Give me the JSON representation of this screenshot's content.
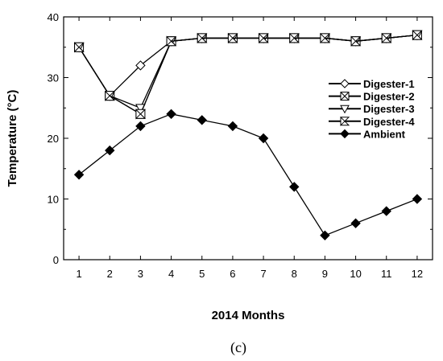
{
  "chart_data": {
    "type": "line",
    "xlabel": "2014 Months",
    "ylabel": "Temperature (°C)",
    "caption": "(c)",
    "x": [
      1,
      2,
      3,
      4,
      5,
      6,
      7,
      8,
      9,
      10,
      11,
      12
    ],
    "xlim": [
      0.5,
      12.5
    ],
    "ylim": [
      0,
      40
    ],
    "xticks": [
      "1",
      "2",
      "3",
      "4",
      "5",
      "6",
      "7",
      "8",
      "9",
      "10",
      "11",
      "12"
    ],
    "yticks": [
      "0",
      "10",
      "20",
      "30",
      "40"
    ],
    "grid": false,
    "legend_position": "right",
    "series": [
      {
        "name": "Digester-1",
        "marker": "diamond-open",
        "x": [
          1,
          2,
          3,
          4,
          5,
          6,
          7,
          8,
          9,
          10,
          11,
          12
        ],
        "values": [
          35,
          27,
          32,
          36,
          36.5,
          36.5,
          36.5,
          36.5,
          36.5,
          36,
          36.5,
          37
        ]
      },
      {
        "name": "Digester-2",
        "marker": "square-x",
        "x": [
          1,
          2,
          3,
          4,
          5,
          6,
          7,
          8,
          9,
          10,
          11,
          12
        ],
        "values": [
          35,
          27,
          24,
          36,
          36.5,
          36.5,
          36.5,
          36.5,
          36.5,
          36,
          36.5,
          37
        ]
      },
      {
        "name": "Digester-3",
        "marker": "triangle-down-open",
        "x": [
          1,
          2,
          3,
          4,
          5,
          6,
          7,
          8,
          9,
          10,
          11,
          12
        ],
        "values": [
          35,
          27,
          25,
          36,
          36.5,
          36.5,
          36.5,
          36.5,
          36.5,
          36,
          36.5,
          37
        ]
      },
      {
        "name": "Digester-4",
        "marker": "bowtie",
        "x": [
          1,
          2,
          3,
          4,
          5,
          6,
          7,
          8,
          9,
          10,
          11,
          12
        ],
        "values": [
          35,
          27,
          24,
          36,
          36.5,
          36.5,
          36.5,
          36.5,
          36.5,
          36,
          36.5,
          37
        ]
      },
      {
        "name": "Ambient",
        "marker": "diamond-filled",
        "x": [
          1,
          2,
          3,
          4,
          5,
          6,
          7,
          8,
          9,
          10,
          11,
          12
        ],
        "values": [
          14,
          18,
          22,
          24,
          23,
          22,
          20,
          12,
          4,
          6,
          8,
          10
        ]
      }
    ]
  }
}
